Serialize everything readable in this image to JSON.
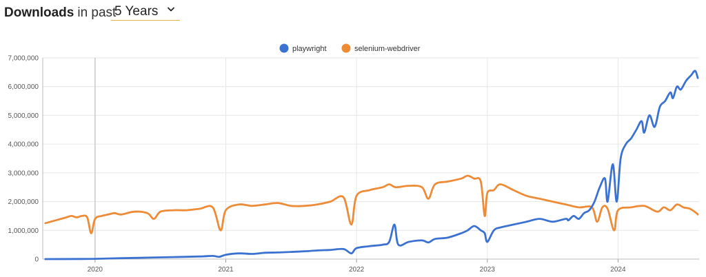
{
  "header": {
    "title_strong": "Downloads",
    "title_light": "in past",
    "period_selected": "5 Years"
  },
  "colors": {
    "playwright": "#3b72d1",
    "selenium": "#ee8b36",
    "grid": "#e6e6e6",
    "hover_line": "#c9c9c9"
  },
  "chart_data": {
    "type": "line",
    "title": "",
    "xlabel": "",
    "ylabel": "",
    "xlim": [
      2019.6,
      2024.62
    ],
    "ylim": [
      0,
      7000000
    ],
    "x_ticks": [
      2020,
      2021,
      2022,
      2023,
      2024
    ],
    "x_tick_labels": [
      "2020",
      "2021",
      "2022",
      "2023",
      "2024"
    ],
    "y_ticks": [
      0,
      1000000,
      2000000,
      3000000,
      4000000,
      5000000,
      6000000,
      7000000
    ],
    "y_tick_labels": [
      "0",
      "1,000,000",
      "2,000,000",
      "3,000,000",
      "4,000,000",
      "5,000,000",
      "6,000,000",
      "7,000,000"
    ],
    "grid": true,
    "legend_position": "top-center",
    "hover_x": 2020,
    "series": [
      {
        "name": "playwright",
        "color": "#3b72d1",
        "points": [
          [
            2019.62,
            0
          ],
          [
            2019.9,
            5000
          ],
          [
            2020.0,
            10000
          ],
          [
            2020.2,
            30000
          ],
          [
            2020.4,
            50000
          ],
          [
            2020.6,
            70000
          ],
          [
            2020.8,
            90000
          ],
          [
            2020.9,
            110000
          ],
          [
            2020.95,
            80000
          ],
          [
            2021.0,
            150000
          ],
          [
            2021.1,
            200000
          ],
          [
            2021.2,
            180000
          ],
          [
            2021.3,
            220000
          ],
          [
            2021.4,
            230000
          ],
          [
            2021.5,
            250000
          ],
          [
            2021.6,
            270000
          ],
          [
            2021.7,
            300000
          ],
          [
            2021.8,
            320000
          ],
          [
            2021.9,
            350000
          ],
          [
            2021.96,
            200000
          ],
          [
            2022.0,
            380000
          ],
          [
            2022.1,
            450000
          ],
          [
            2022.2,
            500000
          ],
          [
            2022.25,
            600000
          ],
          [
            2022.29,
            1200000
          ],
          [
            2022.32,
            500000
          ],
          [
            2022.4,
            600000
          ],
          [
            2022.5,
            650000
          ],
          [
            2022.55,
            580000
          ],
          [
            2022.6,
            700000
          ],
          [
            2022.7,
            750000
          ],
          [
            2022.8,
            900000
          ],
          [
            2022.85,
            1000000
          ],
          [
            2022.9,
            1150000
          ],
          [
            2022.95,
            1000000
          ],
          [
            2022.98,
            900000
          ],
          [
            2023.0,
            600000
          ],
          [
            2023.05,
            1000000
          ],
          [
            2023.1,
            1100000
          ],
          [
            2023.2,
            1200000
          ],
          [
            2023.3,
            1300000
          ],
          [
            2023.4,
            1400000
          ],
          [
            2023.5,
            1300000
          ],
          [
            2023.6,
            1400000
          ],
          [
            2023.62,
            1350000
          ],
          [
            2023.66,
            1500000
          ],
          [
            2023.7,
            1400000
          ],
          [
            2023.74,
            1600000
          ],
          [
            2023.78,
            1700000
          ],
          [
            2023.82,
            2000000
          ],
          [
            2023.86,
            2500000
          ],
          [
            2023.9,
            2800000
          ],
          [
            2023.92,
            2000000
          ],
          [
            2023.96,
            3300000
          ],
          [
            2023.99,
            2000000
          ],
          [
            2024.02,
            3500000
          ],
          [
            2024.06,
            4000000
          ],
          [
            2024.1,
            4200000
          ],
          [
            2024.14,
            4500000
          ],
          [
            2024.18,
            4800000
          ],
          [
            2024.2,
            4400000
          ],
          [
            2024.24,
            5000000
          ],
          [
            2024.28,
            4600000
          ],
          [
            2024.32,
            5300000
          ],
          [
            2024.36,
            5500000
          ],
          [
            2024.4,
            5800000
          ],
          [
            2024.42,
            5600000
          ],
          [
            2024.45,
            6000000
          ],
          [
            2024.48,
            5900000
          ],
          [
            2024.52,
            6200000
          ],
          [
            2024.56,
            6400000
          ],
          [
            2024.59,
            6550000
          ],
          [
            2024.61,
            6300000
          ]
        ]
      },
      {
        "name": "selenium-webdriver",
        "color": "#ee8b36",
        "points": [
          [
            2019.62,
            1250000
          ],
          [
            2019.66,
            1300000
          ],
          [
            2019.7,
            1350000
          ],
          [
            2019.74,
            1400000
          ],
          [
            2019.78,
            1450000
          ],
          [
            2019.82,
            1500000
          ],
          [
            2019.86,
            1450000
          ],
          [
            2019.9,
            1500000
          ],
          [
            2019.94,
            1450000
          ],
          [
            2019.97,
            900000
          ],
          [
            2020.0,
            1400000
          ],
          [
            2020.05,
            1500000
          ],
          [
            2020.1,
            1550000
          ],
          [
            2020.15,
            1600000
          ],
          [
            2020.2,
            1550000
          ],
          [
            2020.3,
            1650000
          ],
          [
            2020.4,
            1600000
          ],
          [
            2020.45,
            1400000
          ],
          [
            2020.5,
            1650000
          ],
          [
            2020.6,
            1700000
          ],
          [
            2020.7,
            1700000
          ],
          [
            2020.8,
            1750000
          ],
          [
            2020.9,
            1800000
          ],
          [
            2020.96,
            1000000
          ],
          [
            2021.0,
            1700000
          ],
          [
            2021.1,
            1900000
          ],
          [
            2021.2,
            1850000
          ],
          [
            2021.3,
            1900000
          ],
          [
            2021.4,
            1950000
          ],
          [
            2021.5,
            1850000
          ],
          [
            2021.6,
            1850000
          ],
          [
            2021.7,
            1900000
          ],
          [
            2021.8,
            2000000
          ],
          [
            2021.9,
            2150000
          ],
          [
            2021.96,
            1200000
          ],
          [
            2022.0,
            2200000
          ],
          [
            2022.1,
            2400000
          ],
          [
            2022.2,
            2500000
          ],
          [
            2022.25,
            2600000
          ],
          [
            2022.3,
            2500000
          ],
          [
            2022.4,
            2550000
          ],
          [
            2022.5,
            2500000
          ],
          [
            2022.55,
            2100000
          ],
          [
            2022.6,
            2600000
          ],
          [
            2022.7,
            2700000
          ],
          [
            2022.8,
            2800000
          ],
          [
            2022.85,
            2900000
          ],
          [
            2022.9,
            2800000
          ],
          [
            2022.95,
            2700000
          ],
          [
            2022.98,
            1500000
          ],
          [
            2023.0,
            2300000
          ],
          [
            2023.05,
            2400000
          ],
          [
            2023.1,
            2600000
          ],
          [
            2023.2,
            2400000
          ],
          [
            2023.3,
            2200000
          ],
          [
            2023.4,
            2100000
          ],
          [
            2023.5,
            2000000
          ],
          [
            2023.6,
            1900000
          ],
          [
            2023.7,
            1800000
          ],
          [
            2023.8,
            1800000
          ],
          [
            2023.84,
            1300000
          ],
          [
            2023.88,
            1800000
          ],
          [
            2023.92,
            1750000
          ],
          [
            2023.97,
            1000000
          ],
          [
            2024.0,
            1700000
          ],
          [
            2024.1,
            1800000
          ],
          [
            2024.2,
            1850000
          ],
          [
            2024.3,
            1650000
          ],
          [
            2024.35,
            1800000
          ],
          [
            2024.4,
            1700000
          ],
          [
            2024.45,
            1900000
          ],
          [
            2024.5,
            1800000
          ],
          [
            2024.55,
            1750000
          ],
          [
            2024.6,
            1600000
          ],
          [
            2024.61,
            1550000
          ]
        ]
      }
    ]
  }
}
